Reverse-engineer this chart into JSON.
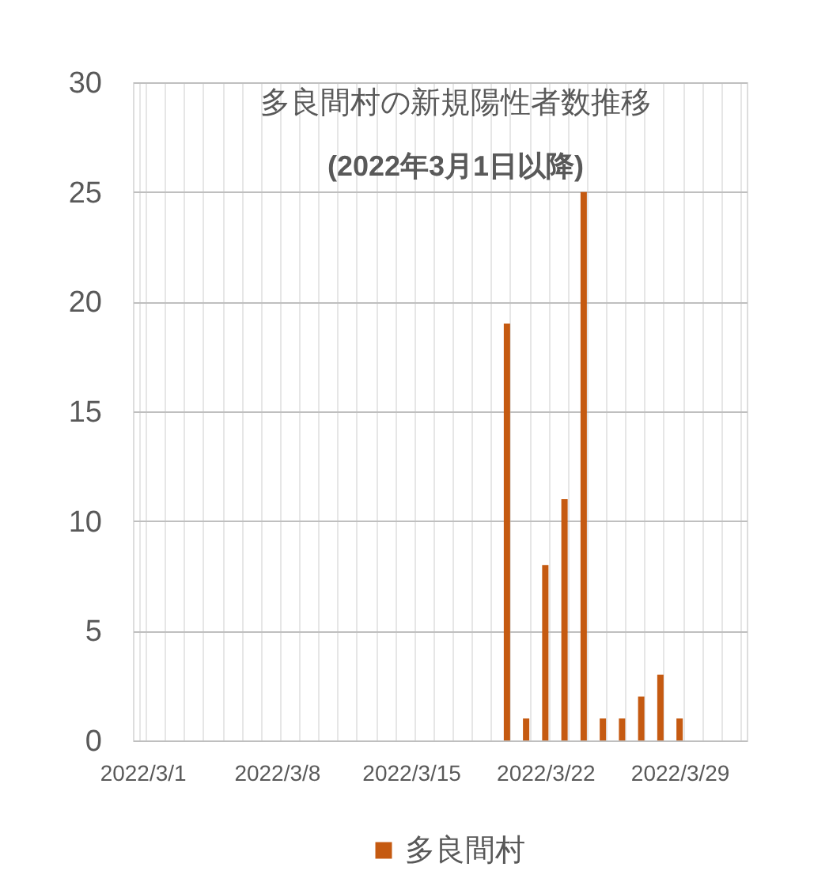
{
  "chart_data": {
    "type": "bar",
    "title": "多良間村の新規陽性者数推移",
    "subtitle": "(2022年3月1日以降)",
    "categories": [
      "2022/3/1",
      null,
      null,
      null,
      null,
      null,
      null,
      "2022/3/8",
      null,
      null,
      null,
      null,
      null,
      null,
      "2022/3/15",
      null,
      null,
      null,
      null,
      null,
      null,
      "2022/3/22",
      null,
      null,
      null,
      null,
      null,
      null,
      "2022/3/29",
      null,
      null,
      null
    ],
    "series": [
      {
        "name": "多良間村",
        "color": "#c55a11",
        "values": [
          null,
          null,
          null,
          null,
          null,
          null,
          null,
          null,
          null,
          null,
          null,
          null,
          null,
          null,
          null,
          null,
          null,
          null,
          null,
          19,
          1,
          8,
          11,
          25,
          1,
          1,
          2,
          3,
          1,
          null,
          null,
          null
        ]
      }
    ],
    "ylim": [
      0,
      30
    ],
    "yticks": [
      0,
      5,
      10,
      15,
      20,
      25,
      30
    ],
    "grid": true,
    "legend": "bottom"
  }
}
